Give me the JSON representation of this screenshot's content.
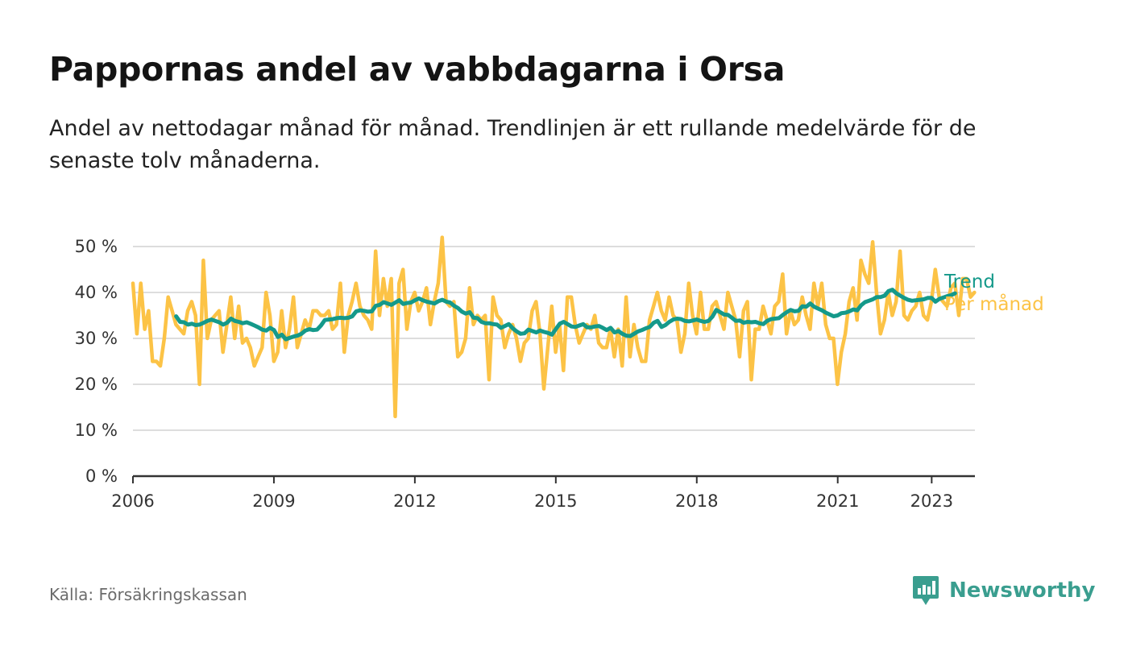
{
  "title": "Pappornas andel av vabbdagarna i Orsa",
  "subtitle": "Andel av nettodagar månad för månad. Trendlinjen är ett rullande medelvärde för de senaste tolv månaderna.",
  "source": "Källa: Försäkringskassan",
  "brand": "Newsworthy",
  "colors": {
    "trend": "#14998a",
    "monthly": "#fcc346",
    "grid": "#dddddd",
    "axis": "#333333",
    "brand": "#3a9e8f"
  },
  "chart_data": {
    "type": "line",
    "title": "Pappornas andel av vabbdagarna i Orsa",
    "xlabel": "",
    "ylabel": "",
    "ylim": [
      0,
      50
    ],
    "xlim": [
      2006.0,
      2023.92
    ],
    "y_ticks": [
      0,
      10,
      20,
      30,
      40,
      50
    ],
    "y_tick_labels": [
      "0 %",
      "10 %",
      "20 %",
      "30 %",
      "40 %",
      "50 %"
    ],
    "x_ticks": [
      2006,
      2009,
      2012,
      2015,
      2018,
      2021,
      2023
    ],
    "x_tick_labels": [
      "2006",
      "2009",
      "2012",
      "2015",
      "2018",
      "2021",
      "2023"
    ],
    "grid": true,
    "legend": "end-of-line labels",
    "series": [
      {
        "name": "Per månad",
        "x_start": 2006.0,
        "x_step": 0.0833,
        "values": [
          42,
          31,
          42,
          32,
          36,
          25,
          25,
          24,
          30,
          39,
          36,
          33,
          32,
          31,
          36,
          38,
          35,
          20,
          47,
          30,
          34,
          35,
          36,
          27,
          33,
          39,
          30,
          37,
          29,
          30,
          28,
          24,
          26,
          28,
          40,
          35,
          25,
          27,
          36,
          28,
          32,
          39,
          28,
          31,
          34,
          32,
          36,
          36,
          35,
          35,
          36,
          32,
          33,
          42,
          27,
          35,
          38,
          42,
          37,
          35,
          34,
          32,
          49,
          35,
          43,
          37,
          43,
          13,
          42,
          45,
          32,
          38,
          40,
          36,
          38,
          41,
          33,
          38,
          42,
          52,
          38,
          37,
          38,
          26,
          27,
          30,
          41,
          33,
          35,
          34,
          35,
          21,
          39,
          35,
          34,
          28,
          31,
          33,
          30,
          25,
          29,
          30,
          36,
          38,
          31,
          19,
          28,
          37,
          27,
          33,
          23,
          39,
          39,
          33,
          29,
          31,
          33,
          32,
          35,
          29,
          28,
          28,
          32,
          26,
          32,
          24,
          39,
          26,
          33,
          28,
          25,
          25,
          34,
          37,
          40,
          36,
          34,
          39,
          35,
          34,
          27,
          31,
          42,
          35,
          31,
          40,
          32,
          32,
          37,
          38,
          35,
          32,
          40,
          37,
          34,
          26,
          36,
          38,
          21,
          32,
          32,
          37,
          34,
          31,
          37,
          38,
          44,
          31,
          36,
          33,
          34,
          39,
          35,
          32,
          42,
          37,
          42,
          33,
          30,
          30,
          20,
          27,
          31,
          38,
          41,
          34,
          47,
          44,
          42,
          51,
          40,
          31,
          34,
          40,
          35,
          38,
          49,
          35,
          34,
          36,
          37,
          40,
          35,
          34,
          38,
          45,
          39,
          38,
          37,
          41,
          42,
          35,
          43,
          43,
          39,
          40
        ]
      },
      {
        "name": "Trend",
        "x_start": 2006.92,
        "x_step": 0.0833,
        "values": [
          34.8,
          33.6,
          33.5,
          33.0,
          33.2,
          32.9,
          33.0,
          33.4,
          33.8,
          34.1,
          33.8,
          33.5,
          33.0,
          33.4,
          34.3,
          33.8,
          33.6,
          33.3,
          33.5,
          33.2,
          32.8,
          32.4,
          31.9,
          31.7,
          32.3,
          31.8,
          30.3,
          30.8,
          29.8,
          30.1,
          30.4,
          30.6,
          31.0,
          31.7,
          32.0,
          31.8,
          31.9,
          32.8,
          34.0,
          34.1,
          34.2,
          34.4,
          34.5,
          34.4,
          34.5,
          34.8,
          35.9,
          36.1,
          36.0,
          35.8,
          35.9,
          37.1,
          37.3,
          37.9,
          37.6,
          37.3,
          37.8,
          38.3,
          37.5,
          37.7,
          37.8,
          38.3,
          38.7,
          38.3,
          38.0,
          37.8,
          37.6,
          38.1,
          38.4,
          38.0,
          37.8,
          37.1,
          36.6,
          35.8,
          35.4,
          35.7,
          34.5,
          34.4,
          33.6,
          33.3,
          33.3,
          33.1,
          33.0,
          32.3,
          32.7,
          33.1,
          32.2,
          31.5,
          31.0,
          31.1,
          31.9,
          31.6,
          31.3,
          31.7,
          31.4,
          31.2,
          30.8,
          32.0,
          33.2,
          33.6,
          33.1,
          32.6,
          32.5,
          32.8,
          33.1,
          32.4,
          32.4,
          32.6,
          32.7,
          32.3,
          31.8,
          32.3,
          31.3,
          31.6,
          31.0,
          30.6,
          30.5,
          31.0,
          31.5,
          31.8,
          32.2,
          32.5,
          33.4,
          33.8,
          32.5,
          32.9,
          33.6,
          34.1,
          34.3,
          34.2,
          33.8,
          33.7,
          33.9,
          34.1,
          33.8,
          33.6,
          33.8,
          34.7,
          36.2,
          35.7,
          35.2,
          35.1,
          34.5,
          33.8,
          33.9,
          33.4,
          33.6,
          33.5,
          33.6,
          33.3,
          33.1,
          33.8,
          34.2,
          34.3,
          34.4,
          35.1,
          35.7,
          36.2,
          35.9,
          36.0,
          37.0,
          36.9,
          37.6,
          36.9,
          36.5,
          36.1,
          35.6,
          35.2,
          34.8,
          35.0,
          35.5,
          35.6,
          35.9,
          36.3,
          36.1,
          37.2,
          37.9,
          38.2,
          38.5,
          39.0,
          39.0,
          39.3,
          40.3,
          40.6,
          39.8,
          39.3,
          38.8,
          38.4,
          38.2,
          38.3,
          38.4,
          38.5,
          38.8,
          38.8,
          38.0,
          38.6,
          38.9,
          39.2,
          39.4,
          39.8
        ]
      }
    ]
  }
}
